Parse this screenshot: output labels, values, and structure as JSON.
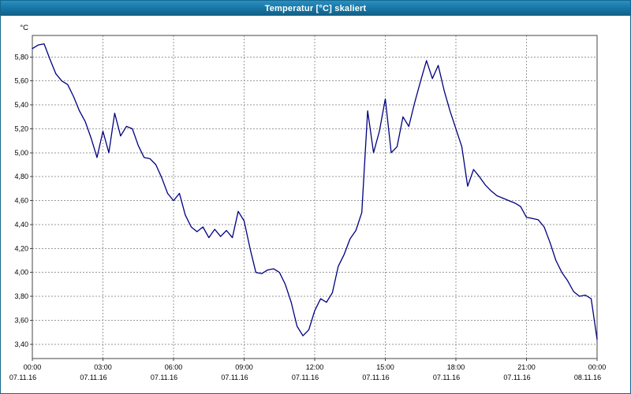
{
  "window": {
    "title": "Temperatur [°C] skaliert"
  },
  "chart_data": {
    "type": "line",
    "title": "Temperatur [°C] skaliert",
    "xlabel": "",
    "ylabel": "°C",
    "grid": "dotted",
    "legend": false,
    "line_color": "#000080",
    "grid_color": "#9a9a9a",
    "frame_color": "#444444",
    "background_color": "#ffffff",
    "x_axis": {
      "range_hours": [
        0,
        24
      ],
      "tick_hours": [
        0,
        3,
        6,
        9,
        12,
        15,
        18,
        21,
        24
      ],
      "tick_time_labels": [
        "00:00",
        "03:00",
        "06:00",
        "09:00",
        "12:00",
        "15:00",
        "18:00",
        "21:00",
        "00:00"
      ],
      "tick_date_labels": [
        "07.11.16",
        "07.11.16",
        "07.11.16",
        "07.11.16",
        "07.11.16",
        "07.11.16",
        "07.11.16",
        "07.11.16",
        "08.11.16"
      ]
    },
    "y_axis": {
      "unit": "°C",
      "range": [
        3.28,
        5.98
      ],
      "ticks": [
        3.4,
        3.6,
        3.8,
        4.0,
        4.2,
        4.4,
        4.6,
        4.8,
        5.0,
        5.2,
        5.4,
        5.6,
        5.8
      ],
      "tick_labels": [
        "3,40",
        "3,60",
        "3,80",
        "4,00",
        "4,20",
        "4,40",
        "4,60",
        "4,80",
        "5,00",
        "5,20",
        "5,40",
        "5,60",
        "5,80"
      ]
    },
    "series": [
      {
        "name": "Temperatur [°C]",
        "x_hours": [
          0,
          0.25,
          0.5,
          0.75,
          1,
          1.25,
          1.5,
          1.75,
          2,
          2.25,
          2.5,
          2.75,
          3,
          3.25,
          3.5,
          3.75,
          4,
          4.25,
          4.5,
          4.75,
          5,
          5.25,
          5.5,
          5.75,
          6,
          6.25,
          6.5,
          6.75,
          7,
          7.25,
          7.5,
          7.75,
          8,
          8.25,
          8.5,
          8.75,
          9,
          9.25,
          9.5,
          9.75,
          10,
          10.25,
          10.5,
          10.75,
          11,
          11.25,
          11.5,
          11.75,
          12,
          12.25,
          12.5,
          12.75,
          13,
          13.25,
          13.5,
          13.75,
          14,
          14.25,
          14.5,
          14.75,
          15,
          15.25,
          15.5,
          15.75,
          16,
          16.25,
          16.5,
          16.75,
          17,
          17.25,
          17.5,
          17.75,
          18,
          18.25,
          18.5,
          18.75,
          19,
          19.25,
          19.5,
          19.75,
          20,
          20.25,
          20.5,
          20.75,
          21,
          21.25,
          21.5,
          21.75,
          22,
          22.25,
          22.5,
          22.75,
          23,
          23.25,
          23.5,
          23.75,
          24
        ],
        "values": [
          5.87,
          5.9,
          5.91,
          5.78,
          5.66,
          5.6,
          5.57,
          5.47,
          5.35,
          5.26,
          5.12,
          4.96,
          5.18,
          5,
          5.33,
          5.14,
          5.22,
          5.2,
          5.06,
          4.96,
          4.95,
          4.9,
          4.79,
          4.66,
          4.6,
          4.66,
          4.48,
          4.38,
          4.34,
          4.38,
          4.29,
          4.36,
          4.3,
          4.35,
          4.29,
          4.51,
          4.43,
          4.2,
          4,
          3.99,
          4.02,
          4.03,
          4,
          3.9,
          3.75,
          3.55,
          3.47,
          3.52,
          3.68,
          3.78,
          3.75,
          3.83,
          4.05,
          4.15,
          4.28,
          4.35,
          4.5,
          5.35,
          5,
          5.18,
          5.45,
          5,
          5.05,
          5.3,
          5.22,
          5.42,
          5.6,
          5.77,
          5.62,
          5.73,
          5.52,
          5.35,
          5.2,
          5.05,
          4.72,
          4.86,
          4.8,
          4.73,
          4.68,
          4.64,
          4.62,
          4.6,
          4.58,
          4.55,
          4.46,
          4.45,
          4.44,
          4.38,
          4.25,
          4.1,
          4,
          3.93,
          3.84,
          3.8,
          3.81,
          3.78,
          3.44
        ]
      }
    ]
  }
}
